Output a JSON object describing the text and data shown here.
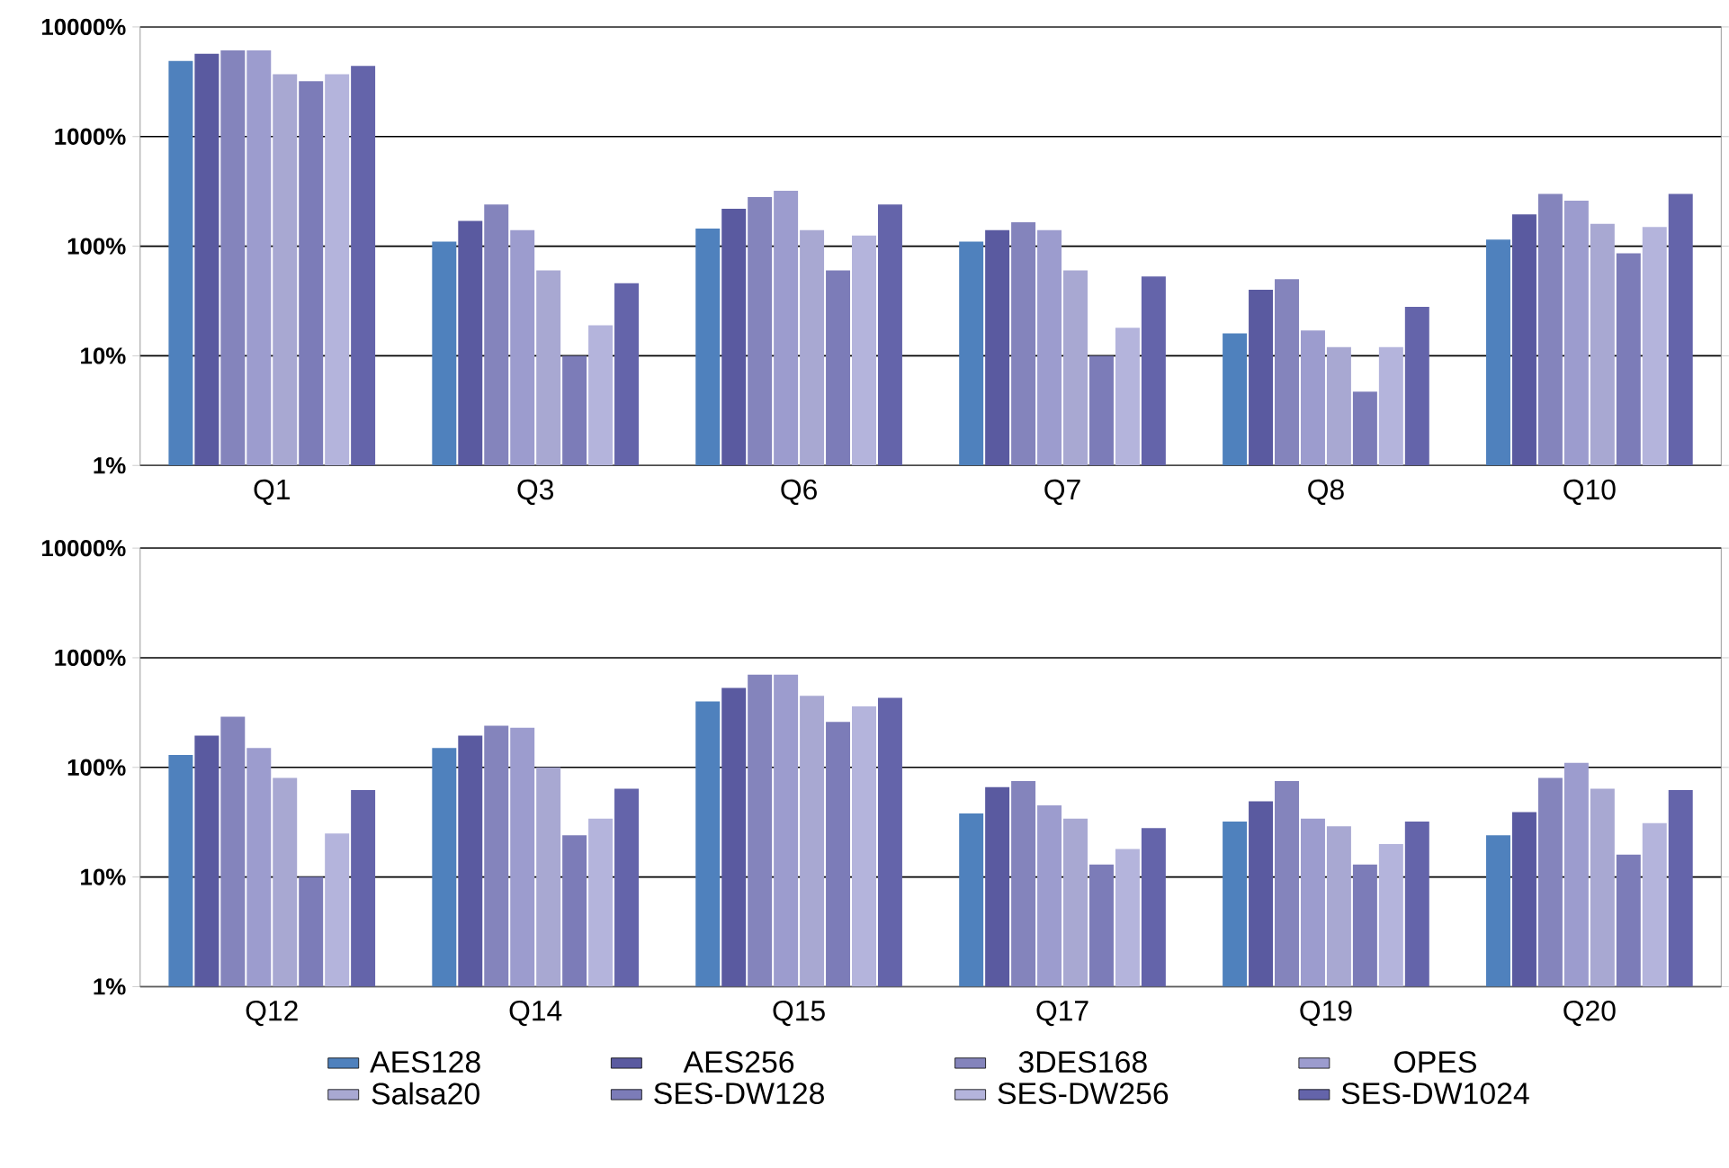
{
  "chart_data": [
    {
      "type": "bar",
      "log": "y",
      "grid": "y",
      "legend": false,
      "categories": [
        "Q1",
        "Q3",
        "Q6",
        "Q7",
        "Q8",
        "Q10"
      ],
      "ylim": [
        1,
        10000
      ],
      "yticks": [
        {
          "value": 1,
          "label": "1%"
        },
        {
          "value": 10,
          "label": "10%"
        },
        {
          "value": 100,
          "label": "100%"
        },
        {
          "value": 1000,
          "label": "1000%"
        },
        {
          "value": 10000,
          "label": "10000%"
        }
      ],
      "series": [
        {
          "color": "#4f81bd",
          "values": [
            4900,
            110,
            145,
            110,
            16,
            115
          ]
        },
        {
          "color": "#5a5aa0",
          "values": [
            5700,
            170,
            220,
            140,
            40,
            195
          ]
        },
        {
          "color": "#8484bc",
          "values": [
            6100,
            240,
            280,
            165,
            50,
            300
          ]
        },
        {
          "color": "#9c9cce",
          "values": [
            6100,
            140,
            320,
            140,
            17,
            260
          ]
        },
        {
          "color": "#a8a8d2",
          "values": [
            3700,
            60,
            140,
            60,
            12,
            160
          ]
        },
        {
          "color": "#7c7cb8",
          "values": [
            3200,
            10,
            60,
            10,
            4.7,
            86
          ]
        },
        {
          "color": "#b4b4dc",
          "values": [
            3700,
            19,
            125,
            18,
            12,
            150
          ]
        },
        {
          "color": "#6464aa",
          "values": [
            4400,
            46,
            240,
            53,
            28,
            300
          ]
        }
      ]
    },
    {
      "type": "bar",
      "log": "y",
      "grid": "y",
      "legend": "bottom",
      "categories": [
        "Q12",
        "Q14",
        "Q15",
        "Q17",
        "Q19",
        "Q20"
      ],
      "ylim": [
        1,
        10000
      ],
      "yticks": [
        {
          "value": 1,
          "label": "1%"
        },
        {
          "value": 10,
          "label": "10%"
        },
        {
          "value": 100,
          "label": "100%"
        },
        {
          "value": 1000,
          "label": "1000%"
        },
        {
          "value": 10000,
          "label": "10000%"
        }
      ],
      "series": [
        {
          "name": "AES128",
          "color": "#4f81bd",
          "values": [
            130,
            150,
            400,
            38,
            32,
            24
          ]
        },
        {
          "name": "AES256",
          "color": "#5a5aa0",
          "values": [
            195,
            195,
            530,
            66,
            49,
            39
          ]
        },
        {
          "name": "3DES168",
          "color": "#8484bc",
          "values": [
            290,
            240,
            700,
            75,
            75,
            80
          ]
        },
        {
          "name": "OPES",
          "color": "#9c9cce",
          "values": [
            150,
            230,
            700,
            45,
            34,
            110
          ]
        },
        {
          "name": "Salsa20",
          "color": "#a8a8d2",
          "values": [
            80,
            100,
            450,
            34,
            29,
            64
          ]
        },
        {
          "name": "SES-DW128",
          "color": "#7c7cb8",
          "values": [
            10,
            24,
            260,
            13,
            13,
            16
          ]
        },
        {
          "name": "SES-DW256",
          "color": "#b4b4dc",
          "values": [
            25,
            34,
            360,
            18,
            20,
            31
          ]
        },
        {
          "name": "SES-DW1024",
          "color": "#6464aa",
          "values": [
            62,
            64,
            430,
            28,
            32,
            62
          ]
        }
      ]
    }
  ]
}
